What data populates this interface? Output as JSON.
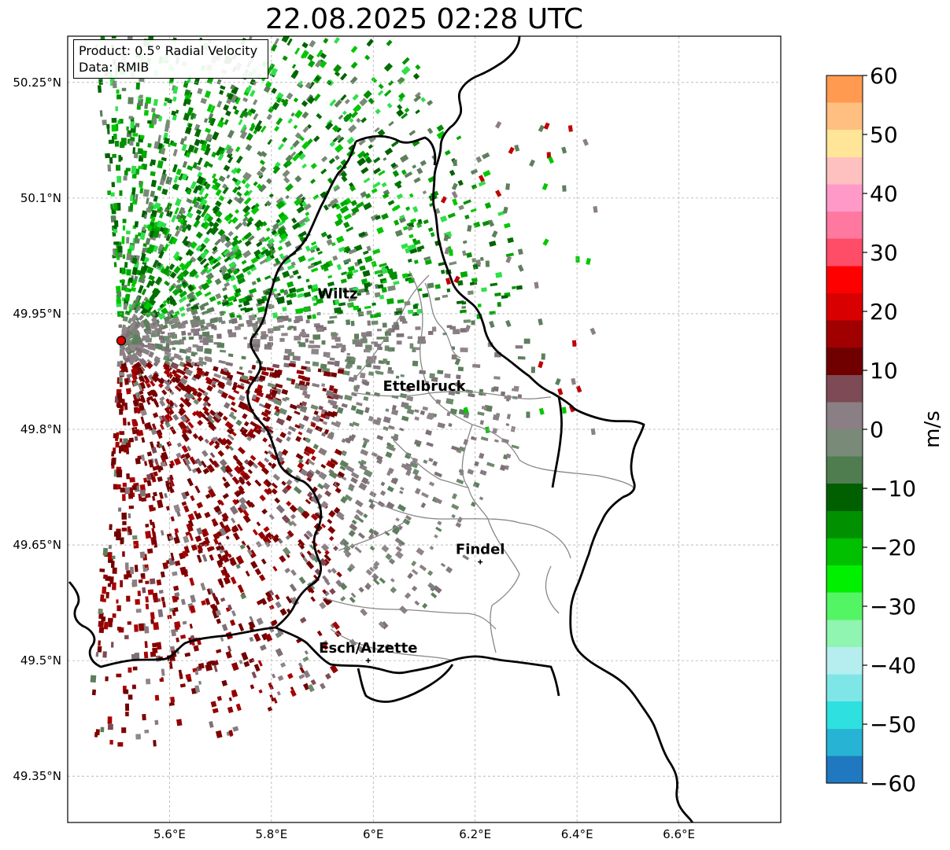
{
  "title": "22.08.2025 02:28 UTC",
  "info": {
    "product": "Product: 0.5° Radial Velocity",
    "data": "Data: RMIB"
  },
  "map": {
    "lon_range": [
      5.4,
      6.8
    ],
    "lat_range": [
      49.29,
      50.31
    ],
    "lon_ticks": [
      "5.6°E",
      "5.8°E",
      "6°E",
      "6.2°E",
      "6.4°E",
      "6.6°E"
    ],
    "lat_ticks": [
      "50.25°N",
      "50.1°N",
      "49.95°N",
      "49.8°N",
      "49.65°N",
      "49.5°N",
      "49.35°N"
    ],
    "grid": true,
    "radar_site": {
      "lon": 5.505,
      "lat": 49.915,
      "color": "#e00000"
    },
    "cities": [
      {
        "name": "Wiltz",
        "lon": 5.93,
        "lat": 49.97,
        "marker": false
      },
      {
        "name": "Ettelbruck",
        "lon": 6.1,
        "lat": 49.85,
        "marker": false
      },
      {
        "name": "Findel",
        "lon": 6.21,
        "lat": 49.628,
        "marker": true
      },
      {
        "name": "Esch/Alzette",
        "lon": 5.99,
        "lat": 49.5,
        "marker": true
      }
    ]
  },
  "colorbar": {
    "min": -60,
    "max": 60,
    "ticks": [
      "60",
      "50",
      "40",
      "30",
      "20",
      "10",
      "0",
      "−10",
      "−20",
      "−30",
      "−40",
      "−50",
      "−60"
    ],
    "label": "m/s",
    "stops": [
      "#1f78c0",
      "#27b4d4",
      "#2ee0e0",
      "#7fe6e8",
      "#b6eef0",
      "#8ff5b0",
      "#54f565",
      "#00f000",
      "#00c000",
      "#009000",
      "#006000",
      "#4f7d50",
      "#7a8a78",
      "#8a7f84",
      "#7e4a55",
      "#700000",
      "#a00000",
      "#d80000",
      "#ff0000",
      "#ff4d68",
      "#ff78a0",
      "#ff9ac8",
      "#ffc0c0",
      "#ffe598",
      "#ffbf80",
      "#ff9a50"
    ]
  }
}
